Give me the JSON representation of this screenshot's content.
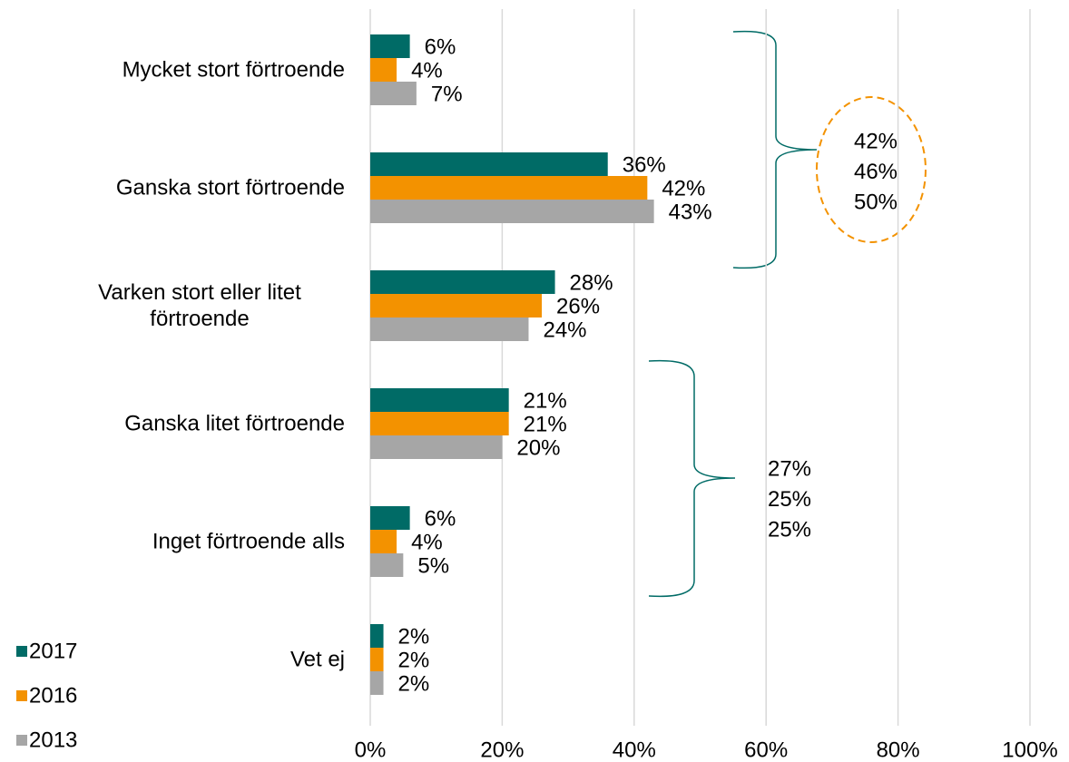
{
  "chart_data": {
    "type": "bar",
    "orientation": "horizontal",
    "categories": [
      "Mycket stort förtroende",
      "Ganska stort förtroende",
      "Varken stort eller litet förtroende",
      "Ganska litet förtroende",
      "Inget förtroende alls",
      "Vet ej"
    ],
    "series": [
      {
        "name": "2017",
        "color": "#006b66",
        "values": [
          6,
          36,
          28,
          21,
          6,
          2
        ],
        "value_labels": [
          "6%",
          "36%",
          "28%",
          "21%",
          "6%",
          "2%"
        ]
      },
      {
        "name": "2016",
        "color": "#f39200",
        "values": [
          4,
          42,
          26,
          21,
          4,
          2
        ],
        "value_labels": [
          "4%",
          "42%",
          "26%",
          "21%",
          "4%",
          "2%"
        ]
      },
      {
        "name": "2013",
        "color": "#a6a6a6",
        "values": [
          7,
          43,
          24,
          20,
          5,
          2
        ],
        "value_labels": [
          "7%",
          "43%",
          "24%",
          "20%",
          "5%",
          "2%"
        ]
      }
    ],
    "xlim": [
      0,
      100
    ],
    "xticks": [
      {
        "value": 0,
        "label": "0%"
      },
      {
        "value": 20,
        "label": "20%"
      },
      {
        "value": 40,
        "label": "40%"
      },
      {
        "value": 60,
        "label": "60%"
      },
      {
        "value": 80,
        "label": "80%"
      },
      {
        "value": 100,
        "label": "100%"
      }
    ],
    "grid": true,
    "legend": "bottom-left",
    "annotations": [
      {
        "lines": [
          "42%",
          "46%",
          "50%"
        ]
      },
      {
        "lines": [
          "27%",
          "25%",
          "25%"
        ]
      }
    ]
  }
}
